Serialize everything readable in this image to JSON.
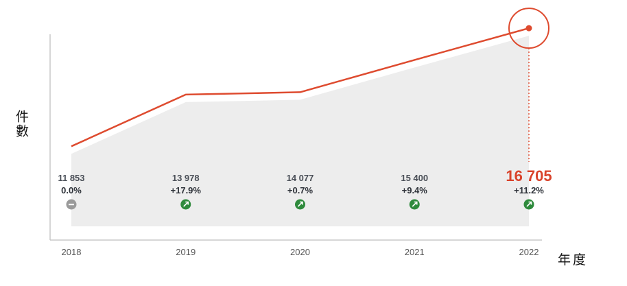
{
  "chart_data": {
    "type": "line",
    "categories": [
      "2018",
      "2019",
      "2020",
      "2021",
      "2022"
    ],
    "values": [
      11853,
      13978,
      14077,
      15400,
      16705
    ],
    "value_labels": [
      "11 853",
      "13 978",
      "14 077",
      "15 400",
      "16 705"
    ],
    "change_labels": [
      "0.0%",
      "+17.9%",
      "+0.7%",
      "+9.4%",
      "+11.2%"
    ],
    "change_trend": [
      "flat",
      "up",
      "up",
      "up",
      "up"
    ],
    "xlabel": "年度",
    "ylabel": "件數",
    "ylim": [
      8000,
      17300
    ],
    "highlight_index": 4,
    "colors": {
      "line": "#de4b2f",
      "area": "#ededed",
      "axis": "#c8c8c8",
      "up_badge": "#2e8a3c",
      "flat_badge": "#9a9a9a",
      "highlight_value": "#d9432b"
    }
  }
}
